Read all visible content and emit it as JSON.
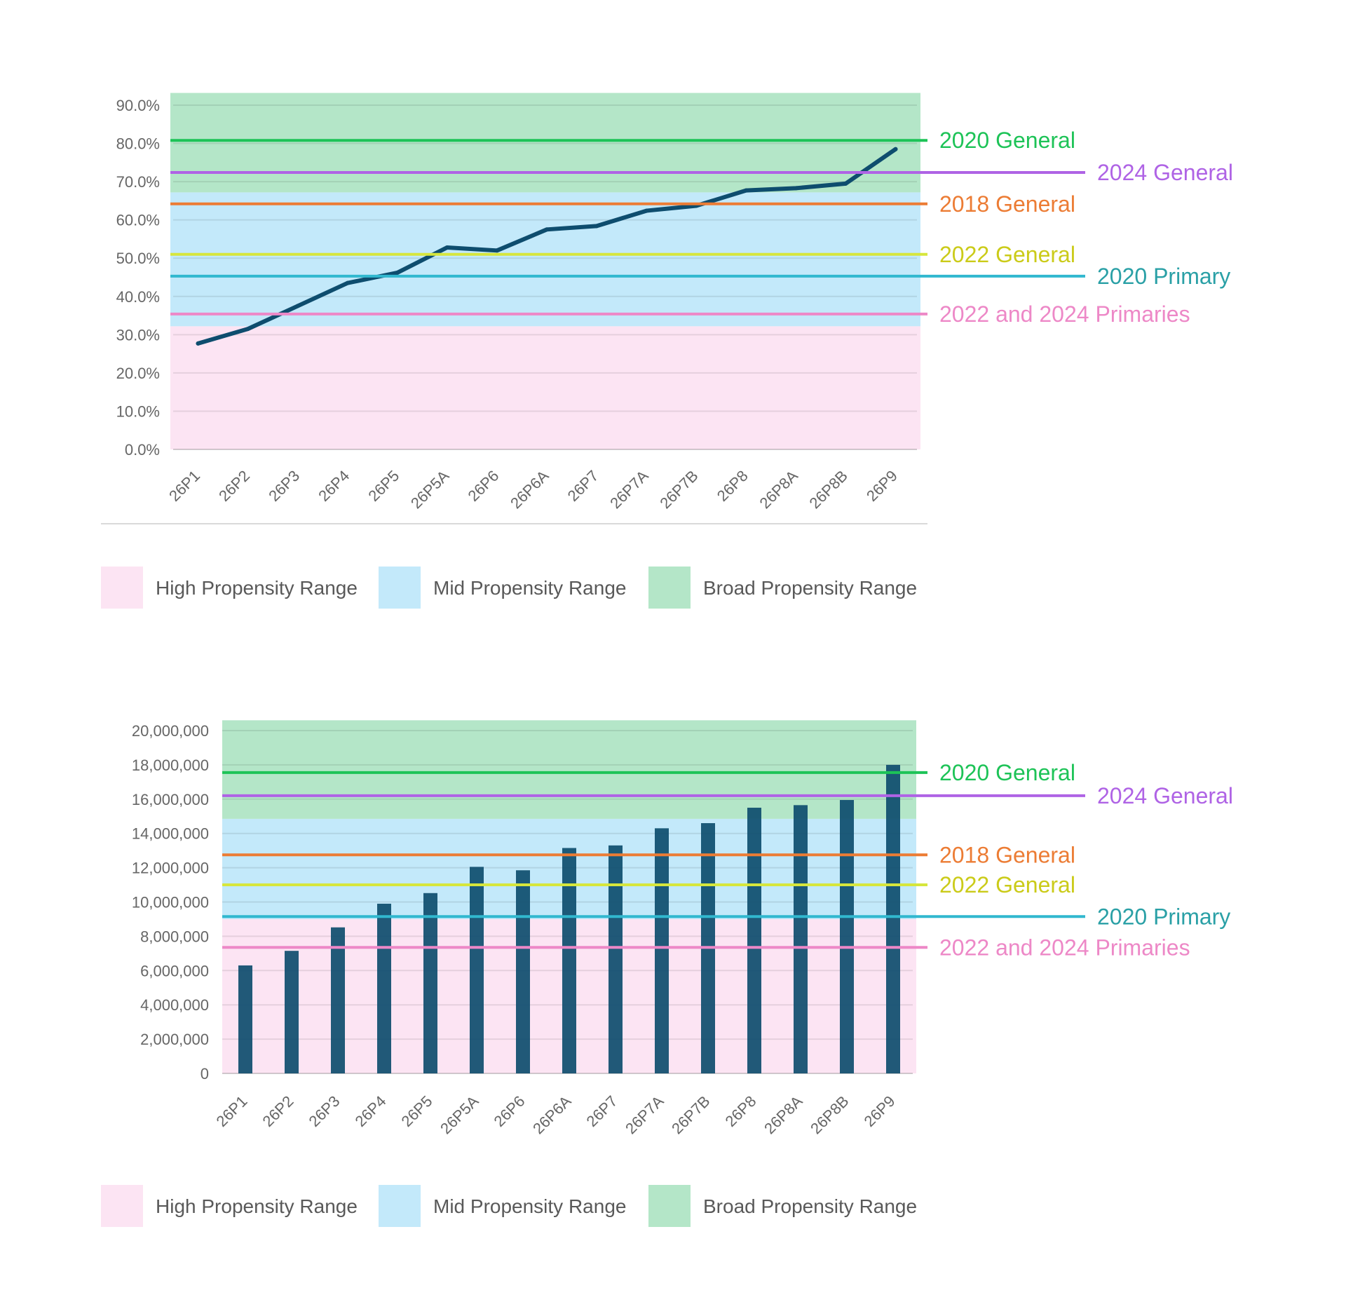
{
  "chart_data": [
    {
      "type": "line",
      "title": "",
      "xlabel": "",
      "ylabel": "",
      "ylim": [
        0,
        90
      ],
      "y_format": "percent",
      "y_ticks": [
        0,
        10,
        20,
        30,
        40,
        50,
        60,
        70,
        80,
        90
      ],
      "y_tick_labels": [
        "0.0%",
        "10.0%",
        "20.0%",
        "30.0%",
        "40.0%",
        "50.0%",
        "60.0%",
        "70.0%",
        "80.0%",
        "90.0%"
      ],
      "categories": [
        "26P1",
        "26P2",
        "26P3",
        "26P4",
        "26P5",
        "26P5A",
        "26P6",
        "26P6A",
        "26P7",
        "26P7A",
        "26P7B",
        "26P8",
        "26P8A",
        "26P8B",
        "26P9"
      ],
      "values": [
        27.7,
        31.5,
        37.5,
        43.5,
        46.2,
        52.8,
        52.0,
        57.5,
        58.4,
        62.4,
        63.7,
        67.7,
        68.3,
        69.5,
        78.5
      ],
      "series_color": "#0E4D6E",
      "bands": [
        {
          "name": "High Propensity Range",
          "from": 0,
          "to": 32.2,
          "color": "#FCE4F3"
        },
        {
          "name": "Mid Propensity Range",
          "from": 32.2,
          "to": 67.2,
          "color": "#C3E9FA"
        },
        {
          "name": "Broad Propensity Range",
          "from": 67.2,
          "to": 93.2,
          "color": "#B4E6C8"
        }
      ],
      "reference_lines": [
        {
          "label": "2020 General",
          "value": 80.8,
          "color": "#1DC357",
          "text_color": "#1DC357",
          "long": false
        },
        {
          "label": "2024 General",
          "value": 72.4,
          "color": "#AF63E5",
          "text_color": "#AF63E5",
          "long": true
        },
        {
          "label": "2018 General",
          "value": 64.2,
          "color": "#EC7C34",
          "text_color": "#EC7C34",
          "long": false
        },
        {
          "label": "2022 General",
          "value": 51.0,
          "color": "#D6E63C",
          "text_color": "#CBCB19",
          "long": false
        },
        {
          "label": "2020 Primary",
          "value": 45.3,
          "color": "#31B8CF",
          "text_color": "#2AA0A6",
          "long": true
        },
        {
          "label": "2022 and 2024 Primaries",
          "value": 35.4,
          "color": "#ED88C7",
          "text_color": "#ED88C7",
          "long": false
        }
      ],
      "legend": [
        {
          "label": "High Propensity Range",
          "color": "#FCE4F3"
        },
        {
          "label": "Mid Propensity Range",
          "color": "#C3E9FA"
        },
        {
          "label": "Broad Propensity Range",
          "color": "#B4E6C8"
        }
      ],
      "legend_position": "bottom-left"
    },
    {
      "type": "bar",
      "title": "",
      "xlabel": "",
      "ylabel": "",
      "ylim": [
        0,
        20000000
      ],
      "y_format": "number",
      "y_ticks": [
        0,
        2000000,
        4000000,
        6000000,
        8000000,
        10000000,
        12000000,
        14000000,
        16000000,
        18000000,
        20000000
      ],
      "y_tick_labels": [
        "0",
        "2,000,000",
        "4,000,000",
        "6,000,000",
        "8,000,000",
        "10,000,000",
        "12,000,000",
        "14,000,000",
        "16,000,000",
        "18,000,000",
        "20,000,000"
      ],
      "categories": [
        "26P1",
        "26P2",
        "26P3",
        "26P4",
        "26P5",
        "26P5A",
        "26P6",
        "26P6A",
        "26P7",
        "26P7A",
        "26P7B",
        "26P8",
        "26P8A",
        "26P8B",
        "26P9"
      ],
      "values": [
        6300000,
        7150000,
        8520000,
        9900000,
        10520000,
        12050000,
        11850000,
        13150000,
        13300000,
        14300000,
        14600000,
        15500000,
        15650000,
        15950000,
        18000000
      ],
      "series_color": "#0E4D6E",
      "bands": [
        {
          "name": "High Propensity Range",
          "from": 0,
          "to": 9000000,
          "color": "#FCE4F3"
        },
        {
          "name": "Mid Propensity Range",
          "from": 9000000,
          "to": 14850000,
          "color": "#C3E9FA"
        },
        {
          "name": "Broad Propensity Range",
          "from": 14850000,
          "to": 20600000,
          "color": "#B4E6C8"
        }
      ],
      "reference_lines": [
        {
          "label": "2020 General",
          "value": 17550000,
          "color": "#1DC357",
          "text_color": "#1DC357",
          "long": false
        },
        {
          "label": "2024 General",
          "value": 16200000,
          "color": "#AF63E5",
          "text_color": "#AF63E5",
          "long": true
        },
        {
          "label": "2018 General",
          "value": 12750000,
          "color": "#EC7C34",
          "text_color": "#EC7C34",
          "long": false
        },
        {
          "label": "2022 General",
          "value": 11000000,
          "color": "#D6E63C",
          "text_color": "#CBCB19",
          "long": false
        },
        {
          "label": "2020 Primary",
          "value": 9150000,
          "color": "#31B8CF",
          "text_color": "#2AA0A6",
          "long": true
        },
        {
          "label": "2022 and 2024 Primaries",
          "value": 7350000,
          "color": "#ED88C7",
          "text_color": "#ED88C7",
          "long": false
        }
      ],
      "legend": [
        {
          "label": "High Propensity Range",
          "color": "#FCE4F3"
        },
        {
          "label": "Mid Propensity Range",
          "color": "#C3E9FA"
        },
        {
          "label": "Broad Propensity Range",
          "color": "#B4E6C8"
        }
      ],
      "legend_position": "bottom-left"
    }
  ]
}
